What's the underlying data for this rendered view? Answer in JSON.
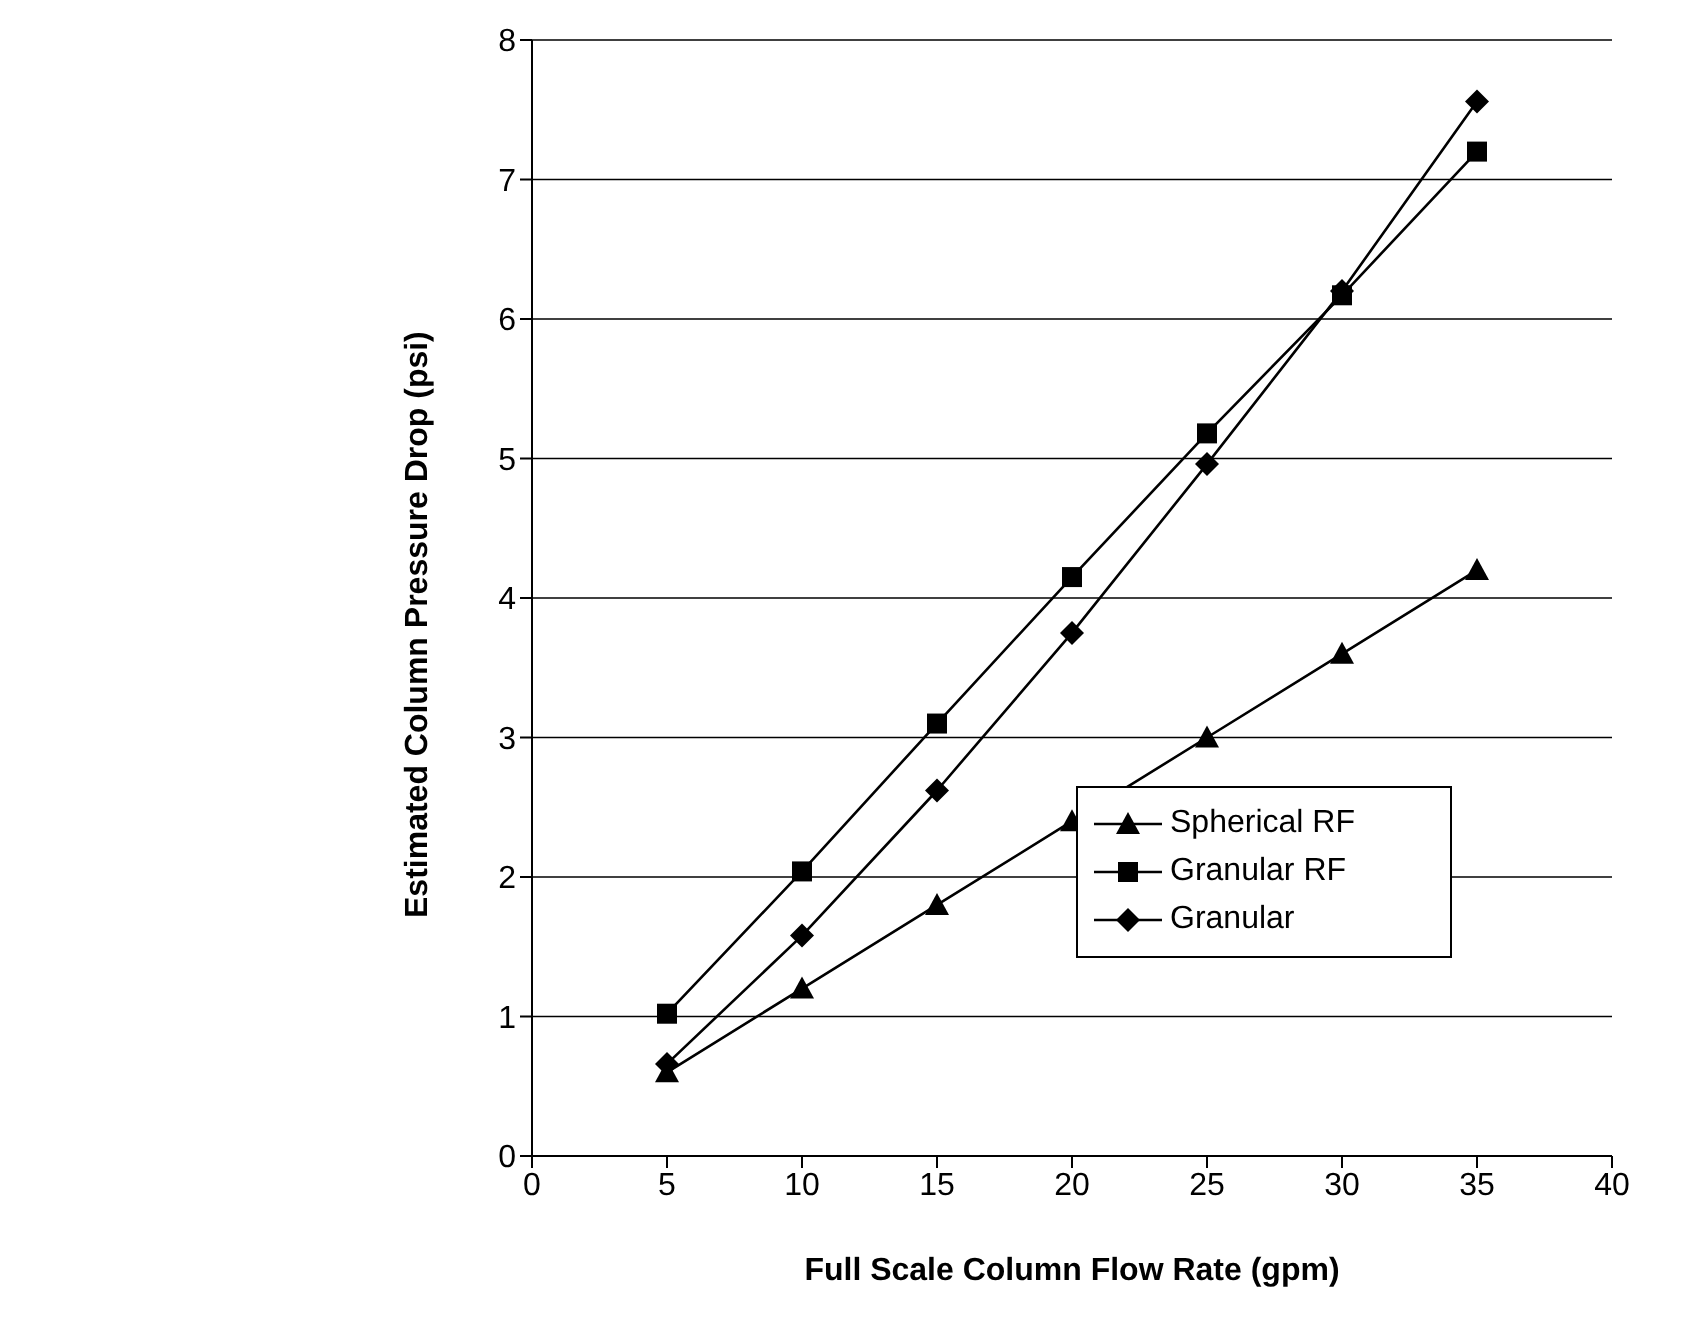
{
  "chart_data": {
    "type": "line",
    "xlabel": "Full Scale Column Flow Rate (gpm)",
    "ylabel": "Estimated Column Pressure Drop (psi)",
    "x": [
      5,
      10,
      15,
      20,
      25,
      30,
      35
    ],
    "series": [
      {
        "name": "Spherical RF",
        "color": "#000000",
        "marker": "triangle",
        "values": [
          0.6,
          1.2,
          1.8,
          2.4,
          3.0,
          3.6,
          4.2
        ]
      },
      {
        "name": "Granular RF",
        "color": "#000000",
        "marker": "square",
        "values": [
          1.02,
          2.04,
          3.1,
          4.15,
          5.18,
          6.17,
          7.2
        ]
      },
      {
        "name": "Granular",
        "color": "#000000",
        "marker": "diamond",
        "values": [
          0.66,
          1.58,
          2.62,
          3.75,
          4.96,
          6.2,
          7.56
        ]
      }
    ],
    "xlim": [
      0,
      40
    ],
    "xticks": [
      0,
      5,
      10,
      15,
      20,
      25,
      30,
      35,
      40
    ],
    "ylim": [
      0,
      8
    ],
    "yticks": [
      0,
      1,
      2,
      3,
      4,
      5,
      6,
      7,
      8
    ],
    "grid": "y",
    "legend": "bottom right",
    "line_style": "solid"
  }
}
